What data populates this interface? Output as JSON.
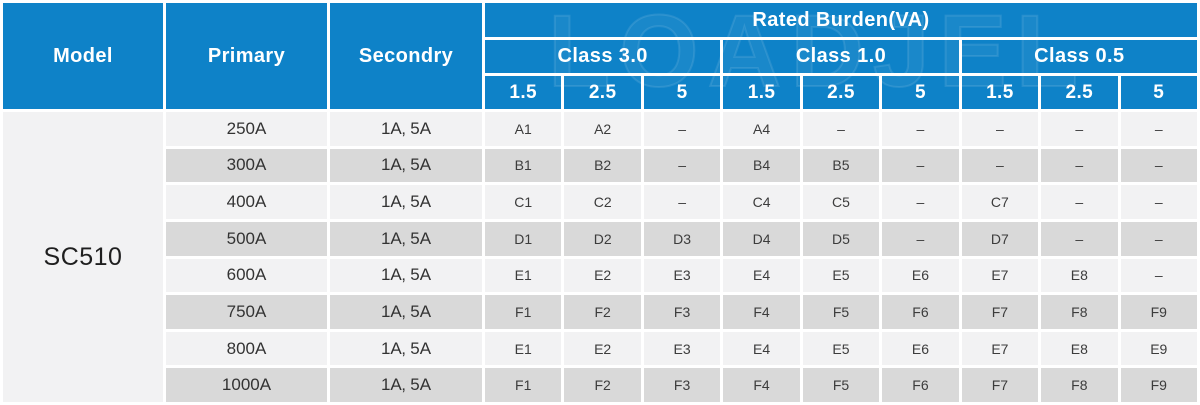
{
  "header": {
    "model": "Model",
    "primary": "Primary",
    "secondary": "Secondry",
    "rated_burden": "Rated Burden(VA)",
    "classes": [
      "Class 3.0",
      "Class 1.0",
      "Class 0.5"
    ],
    "burden_values": [
      "1.5",
      "2.5",
      "5",
      "1.5",
      "2.5",
      "5",
      "1.5",
      "2.5",
      "5"
    ]
  },
  "model": {
    "value": "SC510"
  },
  "rows": [
    {
      "primary": "250A",
      "secondary": "1A、5A",
      "cells": [
        "A1",
        "A2",
        "–",
        "A4",
        "–",
        "–",
        "–",
        "–",
        "–"
      ]
    },
    {
      "primary": "300A",
      "secondary": "1A、5A",
      "cells": [
        "B1",
        "B2",
        "–",
        "B4",
        "B5",
        "–",
        "–",
        "–",
        "–"
      ]
    },
    {
      "primary": "400A",
      "secondary": "1A、5A",
      "cells": [
        "C1",
        "C2",
        "–",
        "C4",
        "C5",
        "–",
        "C7",
        "–",
        "–"
      ]
    },
    {
      "primary": "500A",
      "secondary": "1A、5A",
      "cells": [
        "D1",
        "D2",
        "D3",
        "D4",
        "D5",
        "–",
        "D7",
        "–",
        "–"
      ]
    },
    {
      "primary": "600A",
      "secondary": "1A、5A",
      "cells": [
        "E1",
        "E2",
        "E3",
        "E4",
        "E5",
        "E6",
        "E7",
        "E8",
        "–"
      ]
    },
    {
      "primary": "750A",
      "secondary": "1A、5A",
      "cells": [
        "F1",
        "F2",
        "F3",
        "F4",
        "F5",
        "F6",
        "F7",
        "F8",
        "F9"
      ]
    },
    {
      "primary": "800A",
      "secondary": "1A、5A",
      "cells": [
        "E1",
        "E2",
        "E3",
        "E4",
        "E5",
        "E6",
        "E7",
        "E8",
        "E9"
      ]
    },
    {
      "primary": "1000A",
      "secondary": "1A、5A",
      "cells": [
        "F1",
        "F2",
        "F3",
        "F4",
        "F5",
        "F6",
        "F7",
        "F8",
        "F9"
      ]
    }
  ],
  "watermark": {
    "text": "LOADJEL"
  },
  "colors": {
    "header_blue": "#0e82c8",
    "row_light": "#f2f2f3",
    "row_dark": "#d9d9d9",
    "grid_gap": "#ffffff",
    "header_text": "#ffffff",
    "body_text": "#333333"
  }
}
